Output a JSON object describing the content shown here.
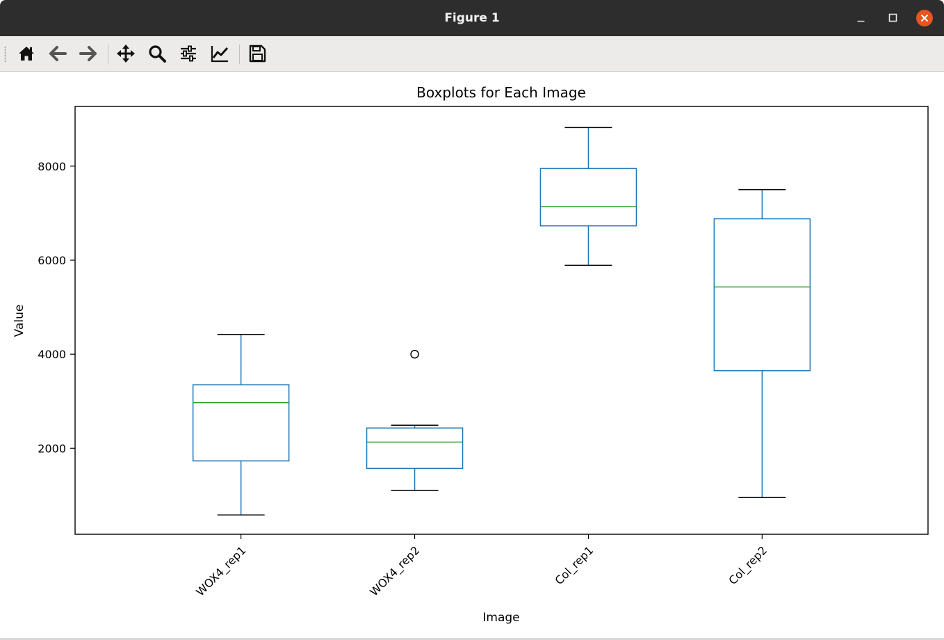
{
  "window": {
    "title": "Figure 1"
  },
  "toolbar": {
    "buttons": [
      {
        "name": "home",
        "icon": "home-icon"
      },
      {
        "name": "back",
        "icon": "arrow-left-icon"
      },
      {
        "name": "forward",
        "icon": "arrow-right-icon"
      },
      {
        "name": "pan",
        "icon": "move-icon"
      },
      {
        "name": "zoom",
        "icon": "magnifier-icon"
      },
      {
        "name": "subplots",
        "icon": "sliders-icon"
      },
      {
        "name": "edit-axes",
        "icon": "line-chart-icon"
      },
      {
        "name": "save",
        "icon": "floppy-disk-icon"
      }
    ]
  },
  "chart_data": {
    "type": "boxplot",
    "title": "Boxplots for Each Image",
    "xlabel": "Image",
    "ylabel": "Value",
    "ylim": [
      170,
      9270
    ],
    "yticks": [
      2000,
      4000,
      6000,
      8000
    ],
    "grid": false,
    "categories": [
      "WOX4_rep1",
      "WOX4_rep2",
      "Col_rep1",
      "Col_rep2"
    ],
    "boxes": [
      {
        "name": "WOX4_rep1",
        "whisker_low": 580,
        "q1": 1730,
        "median": 2970,
        "q3": 3350,
        "whisker_high": 4420,
        "outliers": []
      },
      {
        "name": "WOX4_rep2",
        "whisker_low": 1100,
        "q1": 1570,
        "median": 2130,
        "q3": 2430,
        "whisker_high": 2490,
        "outliers": [
          4000
        ]
      },
      {
        "name": "Col_rep1",
        "whisker_low": 5890,
        "q1": 6730,
        "median": 7140,
        "q3": 7950,
        "whisker_high": 8820,
        "outliers": []
      },
      {
        "name": "Col_rep2",
        "whisker_low": 950,
        "q1": 3650,
        "median": 5430,
        "q3": 6880,
        "whisker_high": 7500,
        "outliers": []
      }
    ],
    "colors": {
      "box": "#1f77b4",
      "median": "#2ca02c",
      "whisker_cap": "#000000",
      "outlier": "#000000"
    }
  }
}
